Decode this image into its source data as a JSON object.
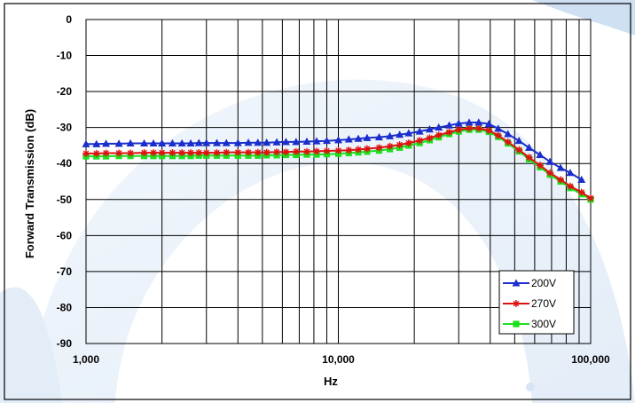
{
  "chart_data": {
    "type": "line",
    "title": "",
    "xlabel": "Hz",
    "ylabel": "Forward Transmission (dB)",
    "x_scale": "log",
    "xlim": [
      1000,
      100000
    ],
    "ylim": [
      -90,
      0
    ],
    "grid": true,
    "legend_position": "bottom-right",
    "x_tick_labels": [
      "1,000",
      "10,000",
      "100,000"
    ],
    "y_tick_labels": [
      "0",
      "-10",
      "-20",
      "-30",
      "-40",
      "-50",
      "-60",
      "-70",
      "-80",
      "-90"
    ],
    "series": [
      {
        "name": "200V",
        "color": "#1a2ecc",
        "marker": "triangle",
        "x": [
          1000,
          1100,
          1200,
          1350,
          1500,
          1700,
          1850,
          2000,
          2200,
          2400,
          2600,
          2800,
          3000,
          3300,
          3600,
          4000,
          4400,
          4800,
          5200,
          5700,
          6200,
          6800,
          7500,
          8200,
          9000,
          10000,
          11000,
          12000,
          13000,
          14500,
          16000,
          17500,
          19000,
          21000,
          23000,
          25000,
          27500,
          30000,
          33000,
          36000,
          39500,
          43000,
          47000,
          52000,
          57000,
          63000,
          69000,
          76000,
          83000,
          92000
        ],
        "y": [
          -34.6,
          -34.6,
          -34.5,
          -34.5,
          -34.4,
          -34.4,
          -34.4,
          -34.4,
          -34.4,
          -34.4,
          -34.4,
          -34.3,
          -34.3,
          -34.3,
          -34.3,
          -34.3,
          -34.2,
          -34.2,
          -34.2,
          -34.1,
          -34.0,
          -34.0,
          -33.9,
          -33.8,
          -33.7,
          -33.5,
          -33.3,
          -33.1,
          -32.9,
          -32.7,
          -32.4,
          -32.0,
          -31.6,
          -31.1,
          -30.5,
          -30.0,
          -29.4,
          -28.9,
          -28.6,
          -28.6,
          -29.0,
          -30.3,
          -31.8,
          -33.7,
          -35.6,
          -37.6,
          -39.5,
          -41.2,
          -42.6,
          -44.5
        ]
      },
      {
        "name": "270V",
        "color": "#e01010",
        "marker": "star",
        "x": [
          1000,
          1100,
          1200,
          1350,
          1500,
          1700,
          1850,
          2000,
          2200,
          2400,
          2600,
          2800,
          3000,
          3300,
          3600,
          4000,
          4400,
          4800,
          5200,
          5700,
          6200,
          6800,
          7500,
          8200,
          9000,
          10000,
          11000,
          12000,
          13000,
          14500,
          16000,
          17500,
          19000,
          21000,
          23000,
          25000,
          27500,
          30000,
          33000,
          36000,
          39500,
          43000,
          47000,
          52000,
          57000,
          63000,
          69000,
          76000,
          83000,
          92000,
          100000
        ],
        "y": [
          -37.2,
          -37.2,
          -37.1,
          -37.1,
          -37.1,
          -37.0,
          -37.0,
          -37.0,
          -37.0,
          -37.0,
          -37.0,
          -37.0,
          -37.0,
          -37.0,
          -36.9,
          -36.9,
          -36.9,
          -36.9,
          -36.9,
          -36.8,
          -36.8,
          -36.7,
          -36.7,
          -36.6,
          -36.5,
          -36.4,
          -36.3,
          -36.1,
          -35.9,
          -35.6,
          -35.2,
          -34.8,
          -34.3,
          -33.6,
          -32.9,
          -32.1,
          -31.3,
          -30.6,
          -30.2,
          -30.2,
          -30.8,
          -32.2,
          -34.0,
          -36.2,
          -38.3,
          -40.5,
          -42.6,
          -44.5,
          -46.3,
          -48.0,
          -49.6
        ]
      },
      {
        "name": "300V",
        "color": "#1ee01e",
        "marker": "square",
        "x": [
          1000,
          1100,
          1200,
          1350,
          1500,
          1700,
          1850,
          2000,
          2200,
          2400,
          2600,
          2800,
          3000,
          3300,
          3600,
          4000,
          4400,
          4800,
          5200,
          5700,
          6200,
          6800,
          7500,
          8200,
          9000,
          10000,
          11000,
          12000,
          13000,
          14500,
          16000,
          17500,
          19000,
          21000,
          23000,
          25000,
          27500,
          30000,
          33000,
          36000,
          39500,
          43000,
          47000,
          52000,
          57000,
          63000,
          69000,
          76000,
          83000,
          92000,
          100000
        ],
        "y": [
          -38.0,
          -38.0,
          -38.0,
          -37.9,
          -37.9,
          -37.9,
          -37.9,
          -37.9,
          -37.9,
          -37.9,
          -37.9,
          -37.8,
          -37.8,
          -37.8,
          -37.8,
          -37.8,
          -37.8,
          -37.8,
          -37.7,
          -37.7,
          -37.6,
          -37.6,
          -37.5,
          -37.5,
          -37.4,
          -37.3,
          -37.1,
          -36.9,
          -36.7,
          -36.4,
          -36.0,
          -35.6,
          -35.0,
          -34.3,
          -33.5,
          -32.7,
          -31.8,
          -31.1,
          -30.6,
          -30.6,
          -31.2,
          -32.6,
          -34.4,
          -36.6,
          -38.8,
          -41.0,
          -43.1,
          -45.0,
          -46.8,
          -48.5,
          -50.0
        ]
      }
    ]
  }
}
